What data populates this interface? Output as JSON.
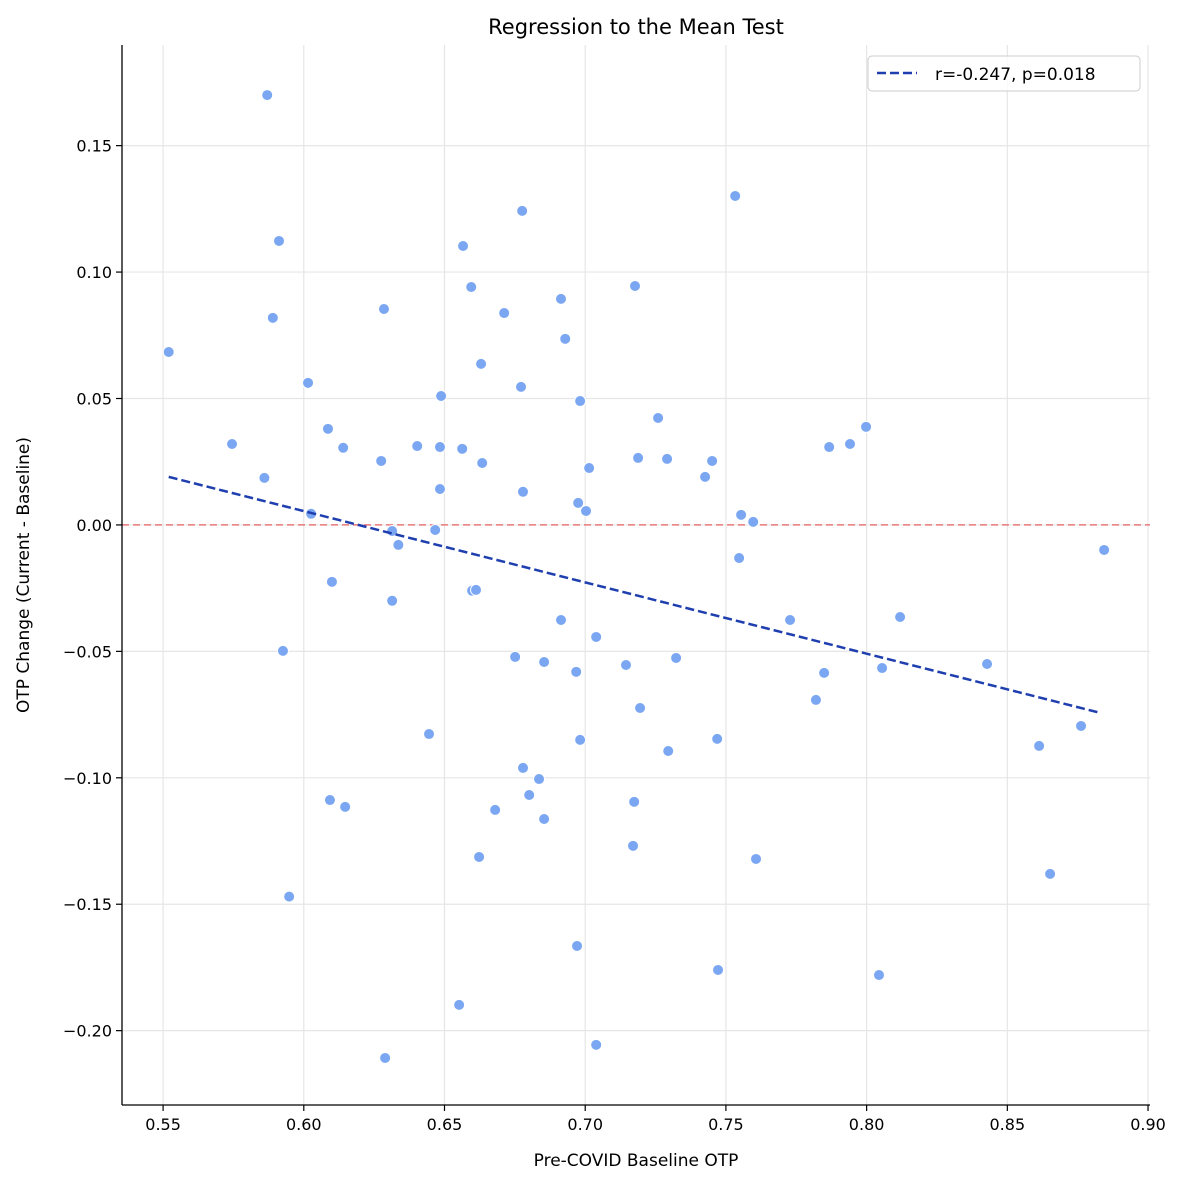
{
  "chart_data": {
    "type": "scatter",
    "title": "Regression to the Mean Test",
    "xlabel": "Pre-COVID Baseline OTP",
    "ylabel": "OTP Change (Current - Baseline)",
    "xlim": [
      0.5354,
      0.9007
    ],
    "ylim": [
      -0.2294,
      0.1898
    ],
    "xticks": [
      "0.55",
      "0.60",
      "0.65",
      "0.70",
      "0.75",
      "0.80",
      "0.85",
      "0.90"
    ],
    "xtick_values": [
      0.55,
      0.6,
      0.65,
      0.7,
      0.75,
      0.8,
      0.85,
      0.9
    ],
    "yticks": [
      "−0.20",
      "−0.15",
      "−0.10",
      "−0.05",
      "0.00",
      "0.05",
      "0.10",
      "0.15"
    ],
    "ytick_values": [
      -0.2,
      -0.15,
      -0.1,
      -0.05,
      0.0,
      0.05,
      0.1,
      0.15
    ],
    "grid": true,
    "legend": {
      "placement": "top-right",
      "entries": [
        "r=-0.247, p=0.018"
      ]
    },
    "colors": {
      "points": "#7ba7f2",
      "trend": "#1f3faf",
      "zero_line": "#e8787a"
    },
    "reference_line": {
      "y": 0.0,
      "style": "dashed"
    },
    "trend_line": {
      "name": "r=-0.247, p=0.018",
      "x": [
        0.552,
        0.8833
      ],
      "y": [
        0.019,
        -0.0744
      ]
    },
    "points": [
      [
        0.587,
        0.17
      ],
      [
        0.5912,
        0.1123
      ],
      [
        0.589,
        0.0819
      ],
      [
        0.552,
        0.0684
      ],
      [
        0.6015,
        0.0562
      ],
      [
        0.5745,
        0.032
      ],
      [
        0.586,
        0.0186
      ],
      [
        0.6086,
        0.038
      ],
      [
        0.614,
        0.0305
      ],
      [
        0.6026,
        0.0044
      ],
      [
        0.61,
        -0.0225
      ],
      [
        0.5926,
        -0.0498
      ],
      [
        0.5948,
        -0.147
      ],
      [
        0.6093,
        -0.1088
      ],
      [
        0.6147,
        -0.1115
      ],
      [
        0.6285,
        0.0854
      ],
      [
        0.6275,
        0.0253
      ],
      [
        0.6403,
        0.0312
      ],
      [
        0.6484,
        0.0142
      ],
      [
        0.6488,
        0.051
      ],
      [
        0.6484,
        0.0308
      ],
      [
        0.6563,
        0.0301
      ],
      [
        0.6566,
        0.1103
      ],
      [
        0.6595,
        0.0941
      ],
      [
        0.663,
        0.0637
      ],
      [
        0.6634,
        0.0245
      ],
      [
        0.6314,
        -0.0024
      ],
      [
        0.6336,
        -0.0079
      ],
      [
        0.6467,
        -0.002
      ],
      [
        0.6314,
        -0.03
      ],
      [
        0.6598,
        -0.026
      ],
      [
        0.6612,
        -0.0257
      ],
      [
        0.6445,
        -0.0827
      ],
      [
        0.6289,
        -0.2108
      ],
      [
        0.6552,
        -0.1898
      ],
      [
        0.6623,
        -0.1313
      ],
      [
        0.668,
        -0.1127
      ],
      [
        0.6776,
        0.1242
      ],
      [
        0.6712,
        0.0838
      ],
      [
        0.6772,
        0.0546
      ],
      [
        0.6779,
        0.0131
      ],
      [
        0.6751,
        -0.0522
      ],
      [
        0.6854,
        -0.0542
      ],
      [
        0.6779,
        -0.0961
      ],
      [
        0.6836,
        -0.1005
      ],
      [
        0.6801,
        -0.1068
      ],
      [
        0.6854,
        -0.1163
      ],
      [
        0.6914,
        0.0894
      ],
      [
        0.6929,
        0.0736
      ],
      [
        0.6982,
        0.049
      ],
      [
        0.6975,
        0.0087
      ],
      [
        0.7003,
        0.0055
      ],
      [
        0.7014,
        0.0225
      ],
      [
        0.6914,
        -0.0376
      ],
      [
        0.6968,
        -0.0581
      ],
      [
        0.7039,
        -0.0443
      ],
      [
        0.6982,
        -0.085
      ],
      [
        0.6971,
        -0.1665
      ],
      [
        0.7039,
        -0.2056
      ],
      [
        0.7177,
        0.0945
      ],
      [
        0.7188,
        0.0265
      ],
      [
        0.7259,
        0.0423
      ],
      [
        0.7291,
        0.0261
      ],
      [
        0.7145,
        -0.0554
      ],
      [
        0.7195,
        -0.0724
      ],
      [
        0.7323,
        -0.0526
      ],
      [
        0.7295,
        -0.0894
      ],
      [
        0.7174,
        -0.1095
      ],
      [
        0.717,
        -0.1269
      ],
      [
        0.7469,
        -0.0846
      ],
      [
        0.7472,
        -0.176
      ],
      [
        0.7533,
        0.1301
      ],
      [
        0.7426,
        0.019
      ],
      [
        0.7451,
        0.0253
      ],
      [
        0.7554,
        0.004
      ],
      [
        0.7597,
        0.0012
      ],
      [
        0.7547,
        -0.0131
      ],
      [
        0.7607,
        -0.1321
      ],
      [
        0.7728,
        -0.0376
      ],
      [
        0.782,
        -0.0692
      ],
      [
        0.7849,
        -0.0585
      ],
      [
        0.7867,
        0.0308
      ],
      [
        0.7941,
        0.032
      ],
      [
        0.7998,
        0.0388
      ],
      [
        0.8055,
        -0.0566
      ],
      [
        0.8044,
        -0.178
      ],
      [
        0.8119,
        -0.0364
      ],
      [
        0.8428,
        -0.055
      ],
      [
        0.8613,
        -0.0874
      ],
      [
        0.8652,
        -0.138
      ],
      [
        0.8762,
        -0.0795
      ],
      [
        0.8844,
        -0.0099
      ]
    ]
  }
}
